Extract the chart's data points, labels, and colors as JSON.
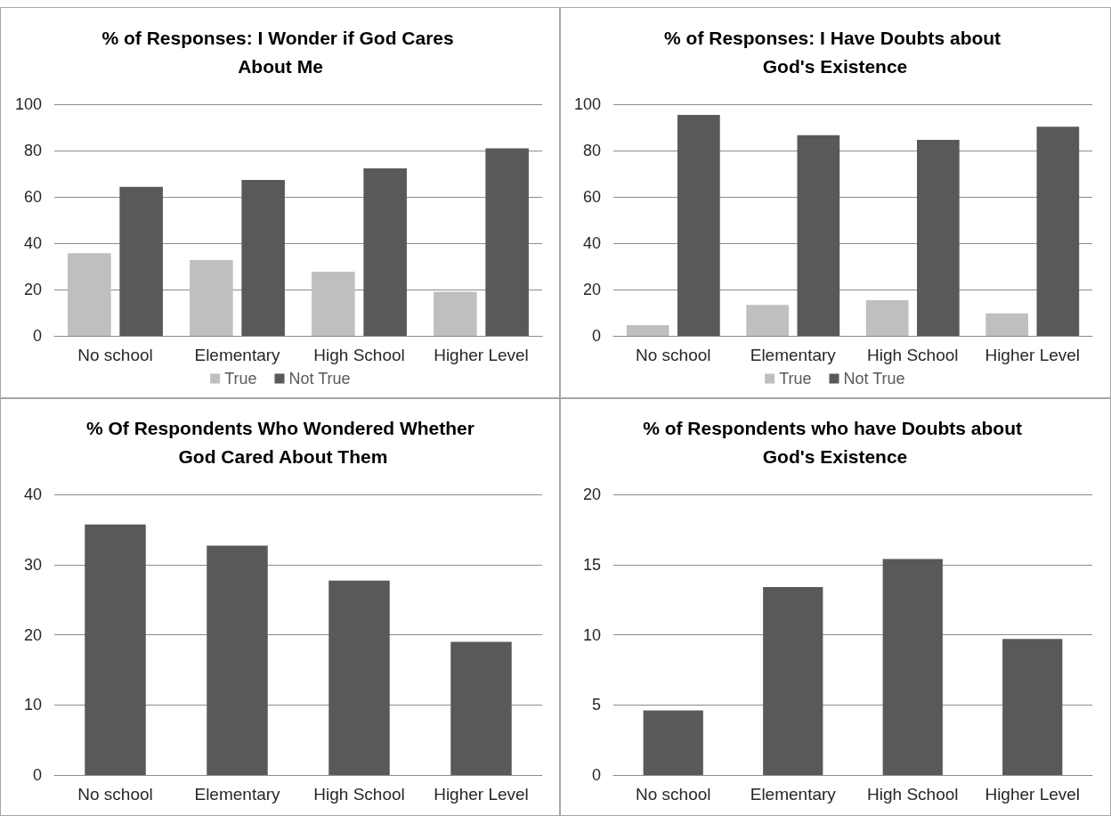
{
  "chart_data": [
    {
      "type": "bar",
      "title": "% of Responses: I Wonder if God Cares About Me",
      "categories": [
        "No school",
        "Elementary",
        "High School",
        "Higher Level"
      ],
      "series": [
        {
          "name": "True",
          "color": "#bfbfbf",
          "values": [
            35.7,
            32.7,
            27.7,
            19.0
          ]
        },
        {
          "name": "Not True",
          "color": "#595959",
          "values": [
            64.3,
            67.3,
            72.3,
            81.0
          ]
        }
      ],
      "ylim": [
        0,
        100
      ],
      "yticks": [
        0,
        20,
        40,
        60,
        80,
        100
      ],
      "grid": "y",
      "legend": "bottom"
    },
    {
      "type": "bar",
      "title": "% of Responses: I Have Doubts about God's Existence",
      "categories": [
        "No school",
        "Elementary",
        "High School",
        "Higher Level"
      ],
      "series": [
        {
          "name": "True",
          "color": "#bfbfbf",
          "values": [
            4.6,
            13.4,
            15.4,
            9.7
          ]
        },
        {
          "name": "Not True",
          "color": "#595959",
          "values": [
            95.4,
            86.6,
            84.6,
            90.3
          ]
        }
      ],
      "ylim": [
        0,
        100
      ],
      "yticks": [
        0,
        20,
        40,
        60,
        80,
        100
      ],
      "grid": "y",
      "legend": "bottom"
    },
    {
      "type": "bar",
      "title": "% Of Respondents Who Wondered Whether God Cared About Them",
      "categories": [
        "No school",
        "Elementary",
        "High School",
        "Higher Level"
      ],
      "values": [
        35.7,
        32.7,
        27.7,
        19.0
      ],
      "color": "#595959",
      "ylim": [
        0,
        40
      ],
      "yticks": [
        0,
        10,
        20,
        30,
        40
      ],
      "grid": "y"
    },
    {
      "type": "bar",
      "title": "% of Respondents who have Doubts about God's Existence",
      "categories": [
        "No school",
        "Elementary",
        "High School",
        "Higher Level"
      ],
      "values": [
        4.6,
        13.4,
        15.4,
        9.7
      ],
      "color": "#595959",
      "ylim": [
        0,
        20
      ],
      "yticks": [
        0,
        5,
        10,
        15,
        20
      ],
      "grid": "y"
    }
  ]
}
